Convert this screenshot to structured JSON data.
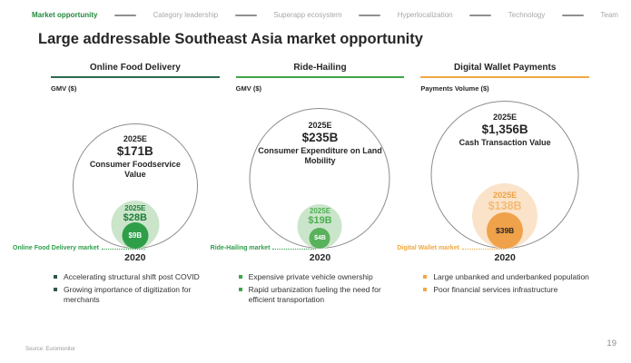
{
  "nav": {
    "items": [
      {
        "label": "Market opportunity",
        "active": true
      },
      {
        "label": "Category leadership",
        "active": false
      },
      {
        "label": "Superapp ecosystem",
        "active": false
      },
      {
        "label": "Hyperlocalization",
        "active": false
      },
      {
        "label": "Technology",
        "active": false
      },
      {
        "label": "Team",
        "active": false
      }
    ]
  },
  "title": "Large addressable Southeast Asia market opportunity",
  "columns": [
    {
      "header": "Online Food Delivery",
      "metric_label": "GMV ($)",
      "accent_color": "#2d6a4f",
      "outer_bubble": {
        "year": "2025E",
        "value": "$171B",
        "desc": "Consumer Foodservice Value"
      },
      "mid_bubble": {
        "year": "2025E",
        "value": "$28B",
        "fill": "#cbe5cb",
        "text_color": "#1e7c36"
      },
      "small_bubble": {
        "value": "$9B",
        "fill": "#2f9e49"
      },
      "market_label": "Online Food Delivery market",
      "base_year": "2020",
      "bullets": [
        "Accelerating structural shift post COVID",
        "Growing importance of digitization for merchants"
      ]
    },
    {
      "header": "Ride-Hailing",
      "metric_label": "GMV ($)",
      "accent_color": "#3fa54b",
      "outer_bubble": {
        "year": "2025E",
        "value": "$235B",
        "desc": "Consumer Expenditure on Land Mobility"
      },
      "mid_bubble": {
        "year": "2025E",
        "value": "$19B",
        "fill": "#cbe5cb",
        "text_color": "#4caf50"
      },
      "small_bubble": {
        "value": "$4B",
        "fill": "#58b25c"
      },
      "market_label": "Ride-Hailing market",
      "base_year": "2020",
      "bullets": [
        "Expensive private vehicle ownership",
        "Rapid urbanization fueling the need for efficient transportation"
      ]
    },
    {
      "header": "Digital Wallet Payments",
      "metric_label": "Payments Volume ($)",
      "accent_color": "#f0a843",
      "outer_bubble": {
        "year": "2025E",
        "value": "$1,356B",
        "desc": "Cash Transaction Value"
      },
      "mid_bubble": {
        "year": "2025E",
        "value": "$138B",
        "fill": "#fae3c8",
        "text_color": "#efa143"
      },
      "small_bubble": {
        "value": "$39B",
        "fill": "#f0a24a"
      },
      "market_label": "Digital Wallet market",
      "base_year": "2020",
      "bullets": [
        "Large unbanked and underbanked population",
        "Poor financial services infrastructure"
      ]
    }
  ],
  "footer": {
    "source": "Source: Euromonitor",
    "page_number": "19"
  },
  "colors": {
    "nav_active": "#218a3c",
    "green_dark": "#2d6a4f",
    "green": "#3fa54b",
    "orange": "#f0a843",
    "text": "#262626"
  }
}
